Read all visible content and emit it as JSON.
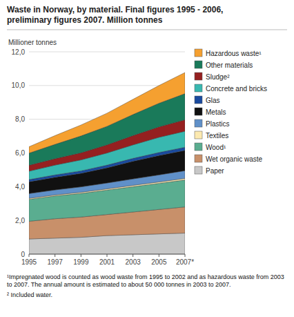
{
  "chart_data": {
    "type": "area",
    "stacked": true,
    "title": "Waste in Norway, by material. Final figures 1995 - 2006,\npreliminary figures 2007. Million tonnes",
    "y_label": "Millioner tonnes",
    "x": [
      1995,
      1997,
      1999,
      2001,
      2003,
      2005,
      2007
    ],
    "xlim": [
      1995,
      2007
    ],
    "xticks": [
      1995,
      1997,
      1999,
      2001,
      2003,
      2005,
      {
        "value": 2007,
        "label": "2007*"
      }
    ],
    "ylim": [
      0,
      12.0
    ],
    "yticks": [
      0,
      {
        "value": 2.0,
        "label": "2,0"
      },
      {
        "value": 4.0,
        "label": "4,0"
      },
      {
        "value": 6.0,
        "label": "6,0"
      },
      {
        "value": 8.0,
        "label": "8,0"
      },
      {
        "value": 10.0,
        "label": "10,0"
      },
      {
        "value": 12.0,
        "label": "12,0"
      }
    ],
    "grid": true,
    "legend": "right",
    "series": [
      {
        "name": "Paper",
        "color": "#c8c8c8",
        "values": [
          0.9,
          0.95,
          1.0,
          1.1,
          1.15,
          1.2,
          1.25
        ]
      },
      {
        "name": "Wet organic waste",
        "color": "#c8906a",
        "values": [
          1.05,
          1.15,
          1.2,
          1.25,
          1.35,
          1.45,
          1.55
        ]
      },
      {
        "name": "Wood¹",
        "color": "#5aad90",
        "values": [
          1.3,
          1.35,
          1.4,
          1.45,
          1.5,
          1.55,
          1.6
        ]
      },
      {
        "name": "Textiles",
        "color": "#fce9b0",
        "values": [
          0.06,
          0.06,
          0.07,
          0.07,
          0.08,
          0.08,
          0.09
        ]
      },
      {
        "name": "Plastics",
        "color": "#6090c8",
        "values": [
          0.28,
          0.3,
          0.32,
          0.35,
          0.38,
          0.42,
          0.46
        ]
      },
      {
        "name": "Metals",
        "color": "#111111",
        "values": [
          0.7,
          0.75,
          0.8,
          0.9,
          1.05,
          1.15,
          1.2
        ]
      },
      {
        "name": "Glas",
        "color": "#1a4a9e",
        "values": [
          0.13,
          0.14,
          0.15,
          0.16,
          0.17,
          0.18,
          0.19
        ]
      },
      {
        "name": "Concrete and bricks",
        "color": "#38b8b0",
        "values": [
          0.5,
          0.58,
          0.65,
          0.72,
          0.8,
          0.9,
          0.95
        ]
      },
      {
        "name": "Sludge²",
        "color": "#952020",
        "values": [
          0.35,
          0.38,
          0.42,
          0.48,
          0.55,
          0.62,
          0.68
        ]
      },
      {
        "name": "Other materials",
        "color": "#1a7a5a",
        "values": [
          0.72,
          0.85,
          1.0,
          1.1,
          1.25,
          1.4,
          1.55
        ]
      },
      {
        "name": "Hazardous waste¹",
        "color": "#f5a030",
        "values": [
          0.38,
          0.52,
          0.65,
          0.78,
          0.9,
          1.05,
          1.25
        ]
      }
    ],
    "annotations": [
      "¹Impregnated wood is counted as wood waste from 1995 to 2002 and as hazardous waste from 2003 to 2007. The annual amount is estimated to about 50 000 tonnes in 2003 to 2007.",
      "² Included water."
    ]
  }
}
